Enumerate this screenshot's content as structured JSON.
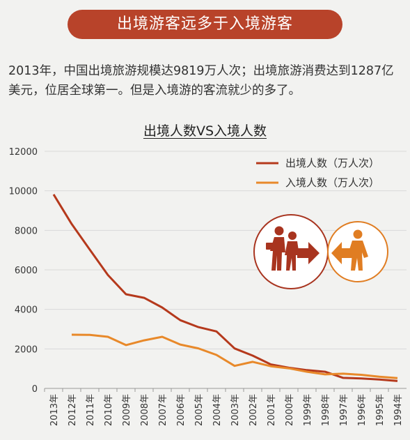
{
  "banner": {
    "title": "出境游客远多于入境游客"
  },
  "intro": {
    "text": "2013年，中国出境旅游规模达9819万人次；出境旅游消费达到1287亿美元，位居全球第一。但是入境游的客流就少的多了。"
  },
  "colors": {
    "banner": "#b8432a",
    "outbound": "#b5391c",
    "inbound": "#e8892a",
    "grid": "#d9d9d9"
  },
  "icons": {
    "outbound": "people-walking-right-arrow-icon",
    "inbound": "person-walking-left-arrow-icon"
  },
  "chart_data": {
    "type": "line",
    "title": "出境人数VS入境人数",
    "categories": [
      "2013年",
      "2012年",
      "2011年",
      "2010年",
      "2009年",
      "2008年",
      "2007年",
      "2006年",
      "2005年",
      "2004年",
      "2003年",
      "2002年",
      "2001年",
      "2000年",
      "1999年",
      "1998年",
      "1997年",
      "1996年",
      "1995年",
      "1994年"
    ],
    "series": [
      {
        "name": "出境人数（万人次）",
        "color": "#b5391c",
        "values": [
          9819,
          8318,
          7025,
          5739,
          4766,
          4584,
          4095,
          3452,
          3103,
          2885,
          2022,
          1660,
          1213,
          1047,
          923,
          843,
          532,
          506,
          452,
          373
        ]
      },
      {
        "name": "入境人数（万人次）",
        "color": "#e8892a",
        "values": [
          null,
          2719,
          2711,
          2612,
          2193,
          2432,
          2611,
          2221,
          2025,
          1693,
          1140,
          1344,
          1122,
          1016,
          843,
          711,
          743,
          689,
          589,
          518
        ]
      }
    ],
    "ylim": [
      0,
      12000
    ],
    "yticks": [
      0,
      2000,
      4000,
      6000,
      8000,
      10000,
      12000
    ],
    "grid": true,
    "legend_position": "top-right"
  }
}
